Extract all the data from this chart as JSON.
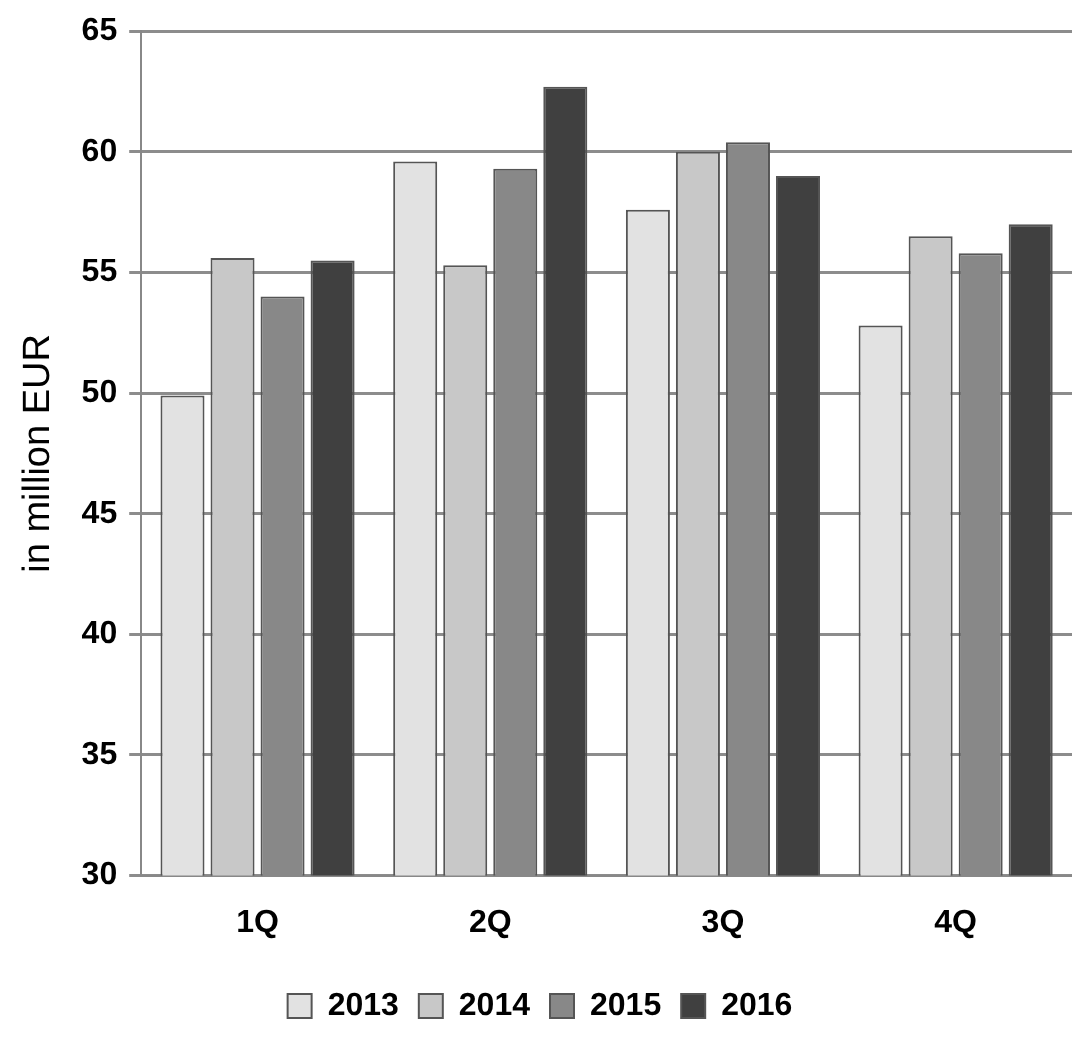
{
  "chart_data": {
    "type": "bar",
    "ylabel": "in million EUR",
    "categories": [
      "1Q",
      "2Q",
      "3Q",
      "4Q"
    ],
    "series": [
      {
        "name": "2013",
        "color": "#e2e2e2",
        "values": [
          49.9,
          59.6,
          57.6,
          52.8
        ]
      },
      {
        "name": "2014",
        "color": "#c8c8c8",
        "values": [
          55.6,
          55.3,
          60.0,
          56.5
        ]
      },
      {
        "name": "2015",
        "color": "#888888",
        "values": [
          54.0,
          59.3,
          60.4,
          55.8
        ]
      },
      {
        "name": "2016",
        "color": "#404040",
        "values": [
          55.5,
          62.7,
          59.0,
          57.0
        ]
      }
    ],
    "ylim": [
      30,
      65
    ],
    "yticks": [
      30,
      35,
      40,
      45,
      50,
      55,
      60,
      65
    ],
    "grid": "y",
    "legend": "bottom"
  }
}
